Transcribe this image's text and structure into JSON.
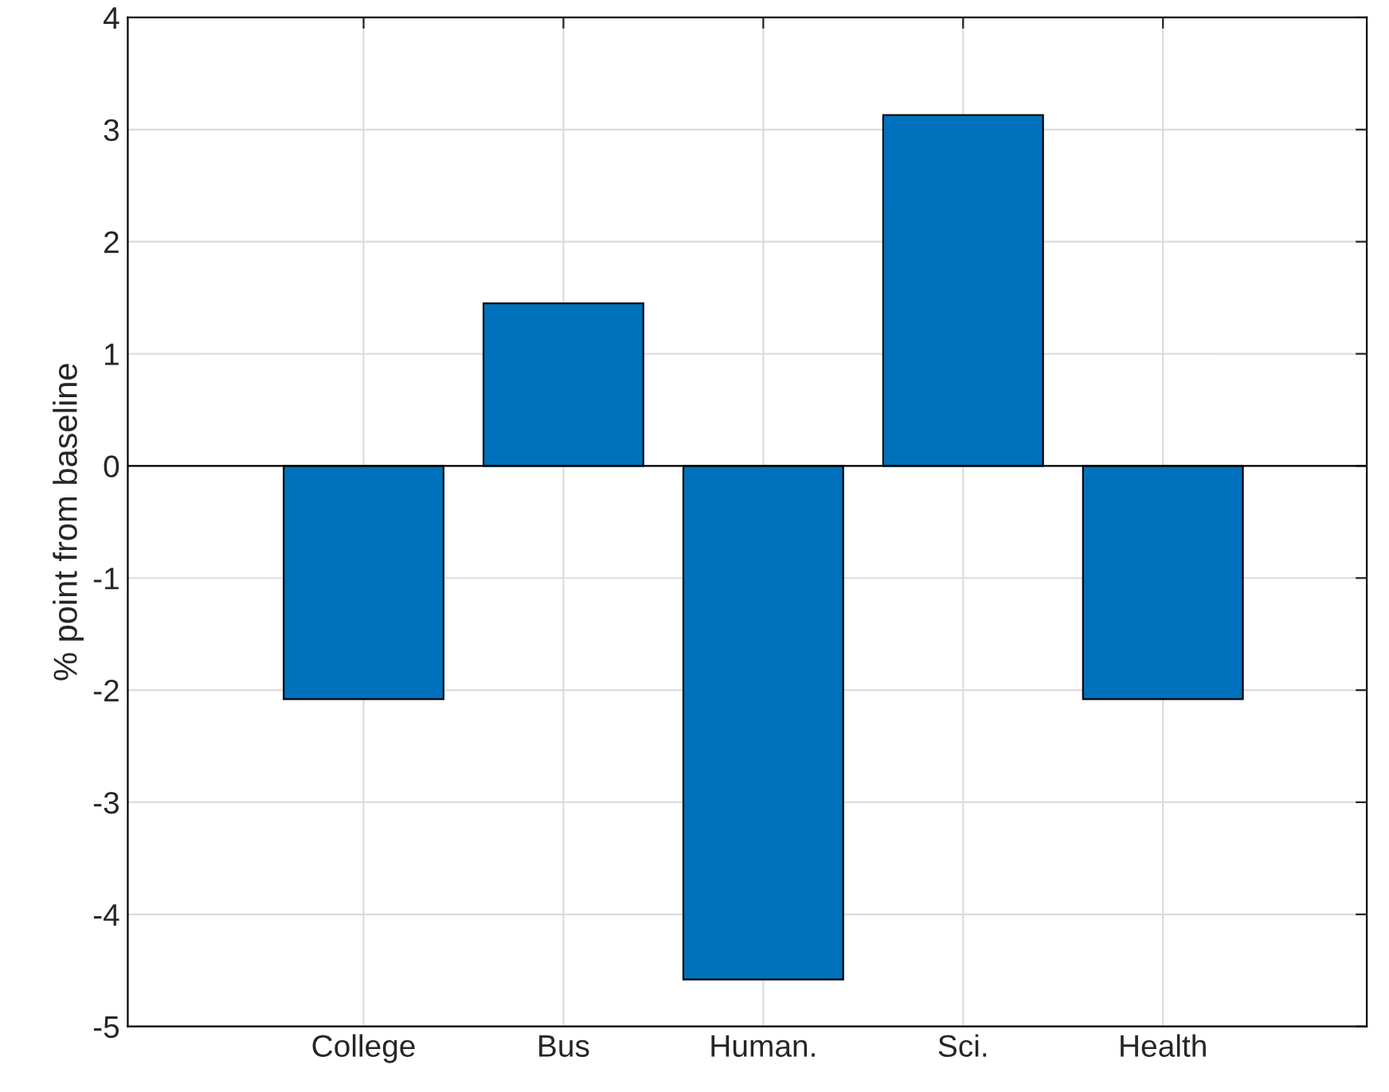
{
  "chart_data": {
    "type": "bar",
    "ylabel": "% point from baseline",
    "categories": [
      "College",
      "Bus",
      "Human.",
      "Sci.",
      "Health"
    ],
    "values": [
      -2.08,
      1.45,
      -4.58,
      3.13,
      -2.08
    ],
    "color": "#0072bd",
    "ylim": [
      -5,
      4
    ],
    "yticks": [
      {
        "value": -5,
        "label": "-5"
      },
      {
        "value": -4,
        "label": "-4"
      },
      {
        "value": -3,
        "label": "-3"
      },
      {
        "value": -2,
        "label": "-2"
      },
      {
        "value": -1,
        "label": "-1"
      },
      0,
      1,
      2,
      3,
      4
    ],
    "ref_lines": [
      {
        "axis": "y",
        "value": 0,
        "color": "#000000"
      }
    ],
    "grid": true
  }
}
